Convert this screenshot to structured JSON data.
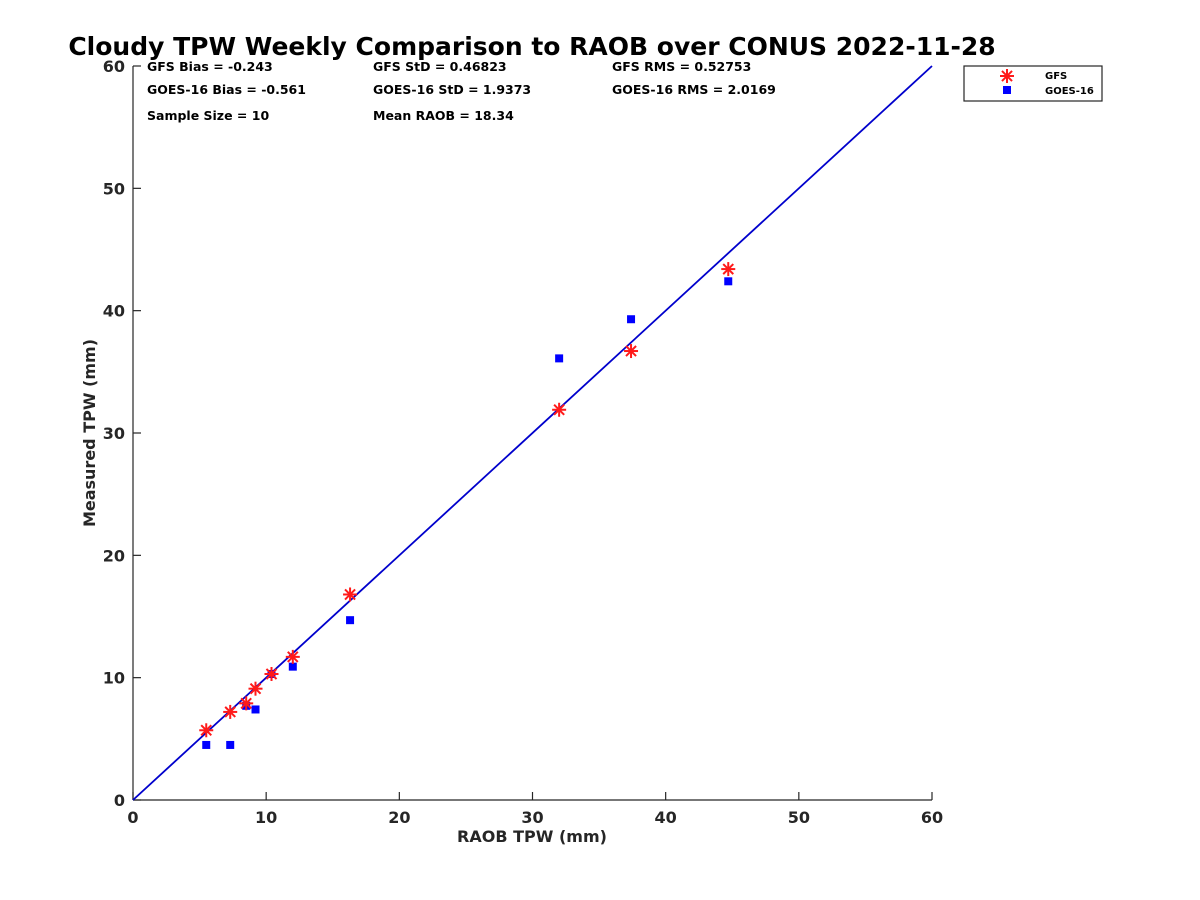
{
  "chart_data": {
    "type": "scatter",
    "title": "Cloudy TPW Weekly Comparison to RAOB over CONUS 2022-11-28",
    "xlabel": "RAOB TPW (mm)",
    "ylabel": "Measured TPW (mm)",
    "xlim": [
      0,
      60
    ],
    "ylim": [
      0,
      60
    ],
    "xticks": [
      "0",
      "10",
      "20",
      "30",
      "40",
      "50",
      "60"
    ],
    "yticks": [
      "0",
      "10",
      "20",
      "30",
      "40",
      "50",
      "60"
    ],
    "grid": false,
    "legend_position": "top-right outside",
    "reference_line": {
      "x": [
        0,
        60
      ],
      "y": [
        0,
        60
      ],
      "color": "#0000cc"
    },
    "stats": {
      "gfs_bias": "GFS Bias = -0.243",
      "gfs_std": "GFS StD = 0.46823",
      "gfs_rms": "GFS RMS = 0.52753",
      "goes_bias": "GOES-16 Bias = -0.561",
      "goes_std": "GOES-16 StD = 1.9373",
      "goes_rms": "GOES-16 RMS = 2.0169",
      "sample_size": "Sample Size = 10",
      "mean_raob": "Mean RAOB = 18.34"
    },
    "series": [
      {
        "name": "GFS",
        "marker": "asterisk",
        "color": "#ff1a1a",
        "x": [
          5.5,
          7.3,
          8.5,
          9.2,
          10.4,
          12.0,
          16.3,
          32.0,
          37.4,
          44.7
        ],
        "y": [
          5.7,
          7.2,
          7.9,
          9.1,
          10.3,
          11.7,
          16.8,
          31.9,
          36.7,
          43.4
        ]
      },
      {
        "name": "GOES-16",
        "marker": "square",
        "color": "#0000ff",
        "x": [
          5.5,
          7.3,
          8.5,
          9.2,
          10.4,
          12.0,
          16.3,
          32.0,
          37.4,
          44.7
        ],
        "y": [
          4.5,
          4.5,
          7.7,
          7.4,
          10.3,
          10.9,
          14.7,
          36.1,
          39.3,
          42.4
        ]
      }
    ]
  }
}
